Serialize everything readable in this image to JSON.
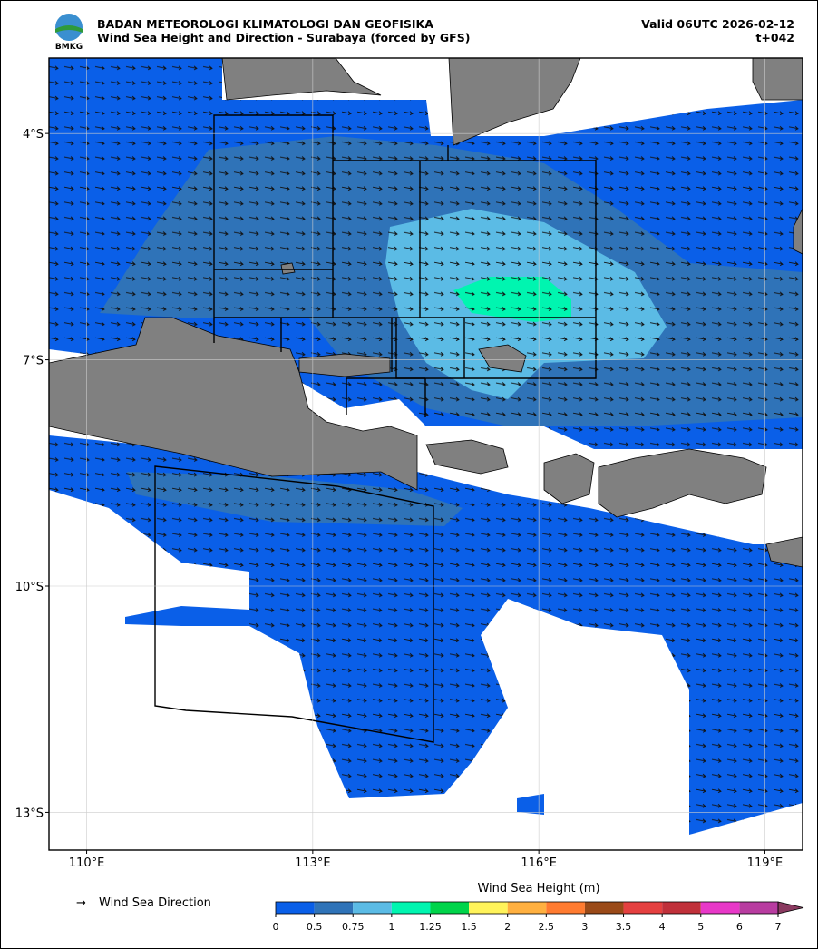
{
  "header": {
    "logo_text": "BMKG",
    "agency": "BADAN METEOROLOGI KLIMATOLOGI DAN GEOFISIKA",
    "product": "Wind Sea Height and Direction - Surabaya (forced by GFS)",
    "valid": "Valid 06UTC 2026-02-12",
    "lead": "t+042"
  },
  "map": {
    "lonlim": [
      109.5,
      119.5
    ],
    "latlim": [
      -3,
      -13.5
    ],
    "lon_ticks": [
      {
        "value": 110,
        "label": "110°E"
      },
      {
        "value": 113,
        "label": "113°E"
      },
      {
        "value": 116,
        "label": "116°E"
      },
      {
        "value": 119,
        "label": "119°E"
      }
    ],
    "lat_ticks": [
      {
        "value": -4,
        "label": "4°S"
      },
      {
        "value": -7,
        "label": "7°S"
      },
      {
        "value": -10,
        "label": "10°S"
      },
      {
        "value": -13,
        "label": "13°S"
      }
    ],
    "grid": true
  },
  "legend": {
    "arrow_label": "Wind Sea Direction"
  },
  "colorbar": {
    "title": "Wind Sea Height (m)",
    "levels": [
      0,
      0.5,
      0.75,
      1,
      1.25,
      1.5,
      2,
      2.5,
      3,
      3.5,
      4,
      5,
      6,
      7
    ],
    "colors": [
      "#0a5fe8",
      "#2f73b8",
      "#5bbbe5",
      "#00f5b0",
      "#00d44a",
      "#fff35a",
      "#ffb040",
      "#ff7b30",
      "#9a4a18",
      "#e54040",
      "#c0303a",
      "#e838c8",
      "#b83ca0",
      "#8a3a60"
    ]
  }
}
